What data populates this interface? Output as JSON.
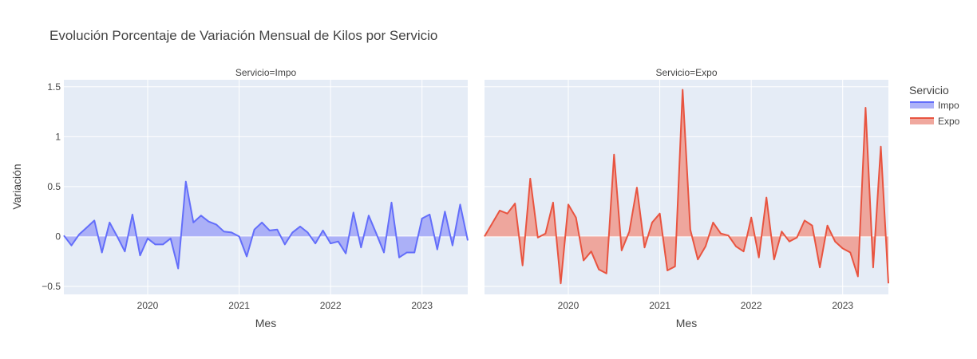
{
  "chart_data": {
    "type": "area",
    "title": "Evolución Porcentaje de Variación Mensual de Kilos por Servicio",
    "ylabel": "Variación",
    "xlabel": "Mes",
    "x_start": "2019-02",
    "x_range": [
      "2019-02",
      "2023-07"
    ],
    "ylim": [
      -0.58,
      1.57
    ],
    "y_ticks": [
      -0.5,
      0,
      0.5,
      1,
      1.5
    ],
    "y_tick_labels": [
      "−0.5",
      "0",
      "0.5",
      "1",
      "1.5"
    ],
    "x_ticks": [
      "2020-01",
      "2021-01",
      "2022-01",
      "2023-01"
    ],
    "x_tick_labels": [
      "2020",
      "2021",
      "2022",
      "2023"
    ],
    "legend": {
      "title": "Servicio",
      "position": "right"
    },
    "panels": [
      {
        "facet": "Servicio=Impo",
        "series_name": "Impo",
        "color": "#636efa",
        "fill": "#a4aaf7",
        "values": [
          0.01,
          -0.09,
          0.02,
          0.09,
          0.16,
          -0.16,
          0.14,
          0.0,
          -0.15,
          0.22,
          -0.19,
          -0.02,
          -0.08,
          -0.08,
          -0.02,
          -0.32,
          0.55,
          0.14,
          0.21,
          0.15,
          0.12,
          0.05,
          0.04,
          0.0,
          -0.2,
          0.07,
          0.14,
          0.06,
          0.07,
          -0.08,
          0.04,
          0.1,
          0.04,
          -0.07,
          0.06,
          -0.07,
          -0.05,
          -0.17,
          0.24,
          -0.11,
          0.21,
          0.03,
          -0.16,
          0.34,
          -0.21,
          -0.16,
          -0.16,
          0.18,
          0.22,
          -0.13,
          0.25,
          -0.09,
          0.32,
          -0.04
        ]
      },
      {
        "facet": "Servicio=Expo",
        "series_name": "Expo",
        "color": "#e85440",
        "fill": "#ee9e94",
        "values": [
          0.0,
          0.13,
          0.26,
          0.23,
          0.33,
          -0.29,
          0.58,
          -0.01,
          0.03,
          0.34,
          -0.47,
          0.32,
          0.19,
          -0.24,
          -0.15,
          -0.33,
          -0.37,
          0.82,
          -0.14,
          0.05,
          0.49,
          -0.11,
          0.14,
          0.23,
          -0.34,
          -0.3,
          1.47,
          0.07,
          -0.23,
          -0.1,
          0.14,
          0.03,
          0.01,
          -0.1,
          -0.15,
          0.19,
          -0.21,
          0.39,
          -0.23,
          0.05,
          -0.05,
          -0.01,
          0.16,
          0.11,
          -0.31,
          0.11,
          -0.05,
          -0.12,
          -0.16,
          -0.4,
          1.29,
          -0.31,
          0.9,
          -0.47
        ]
      }
    ]
  }
}
